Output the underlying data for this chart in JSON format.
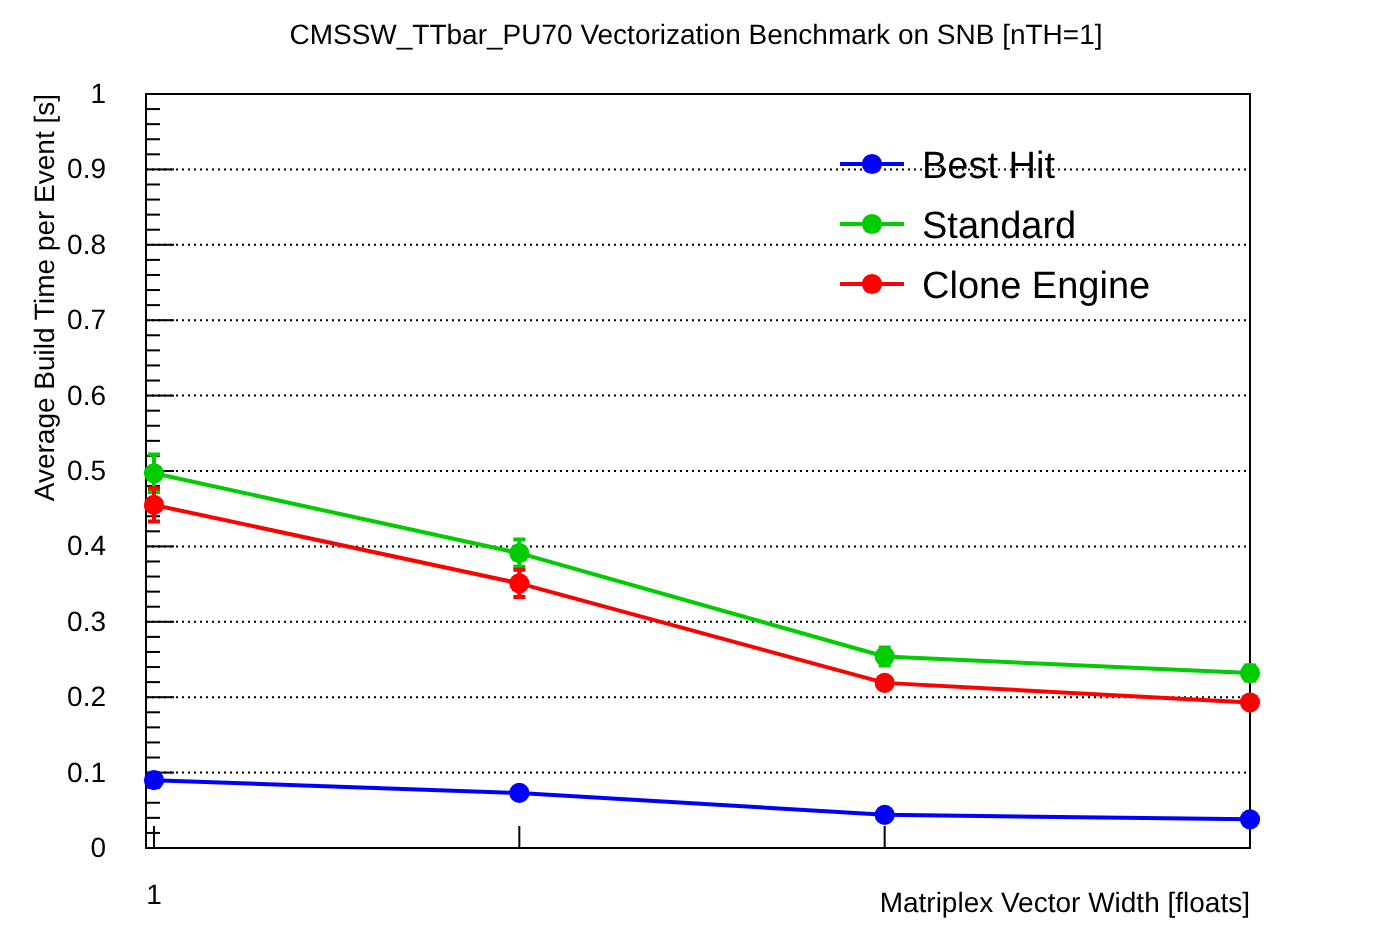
{
  "chart_data": {
    "type": "line",
    "title": "CMSSW_TTbar_PU70 Vectorization Benchmark on SNB [nTH=1]",
    "xlabel": "Matriplex Vector Width [floats]",
    "ylabel": "Average Build Time per Event [s]",
    "categories": [
      "1",
      null,
      null,
      null
    ],
    "ylim": [
      0,
      1
    ],
    "yticks": [
      0,
      0.1,
      0.2,
      0.3,
      0.4,
      0.5,
      0.6,
      0.7,
      0.8,
      0.9,
      1
    ],
    "grid": "y",
    "legend": "top right",
    "marker": "circle",
    "line_style": "solid",
    "series": [
      {
        "name": "Best Hit",
        "color": "#0000ff",
        "values": [
          0.09,
          0.073,
          0.044,
          0.038
        ]
      },
      {
        "name": "Standard",
        "color": "#00cc00",
        "values": [
          0.497,
          0.391,
          0.254,
          0.232
        ],
        "errors": [
          0.025,
          0.018,
          0.012,
          0.01
        ]
      },
      {
        "name": "Clone Engine",
        "color": "#ff0000",
        "values": [
          0.455,
          0.351,
          0.219,
          0.193
        ],
        "errors": [
          0.022,
          0.018,
          null,
          null
        ]
      }
    ]
  }
}
